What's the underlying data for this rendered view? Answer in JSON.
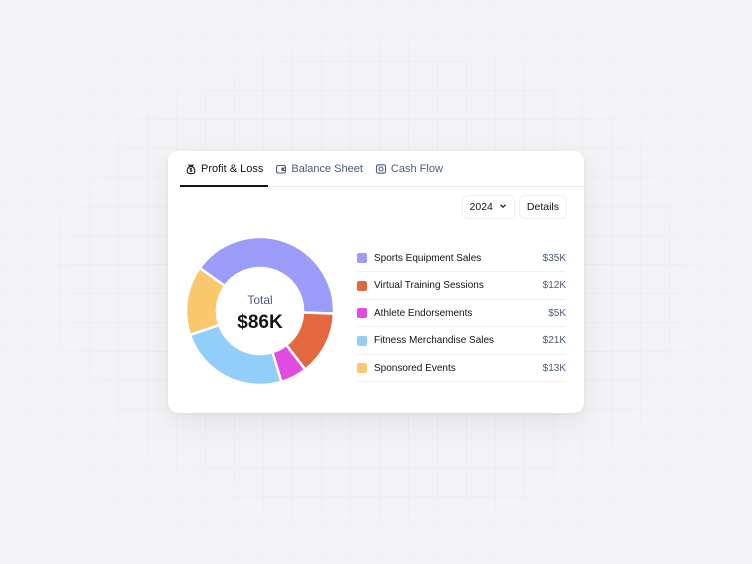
{
  "tabs": [
    {
      "label": "Profit & Loss",
      "icon": "money-bag-icon",
      "active": true
    },
    {
      "label": "Balance Sheet",
      "icon": "wallet-icon",
      "active": false
    },
    {
      "label": "Cash Flow",
      "icon": "coins-icon",
      "active": false
    }
  ],
  "year_select": {
    "value": "2024",
    "icon": "chevron-down-icon"
  },
  "details_label": "Details",
  "total": {
    "label": "Total",
    "value": "$86K"
  },
  "legend": [
    {
      "name": "Sports Equipment Sales",
      "value": "$35K",
      "color": "#9b9bf8"
    },
    {
      "name": "Virtual Training Sessions",
      "value": "$12K",
      "color": "#e3683f"
    },
    {
      "name": "Athlete Endorsements",
      "value": "$5K",
      "color": "#e24be0"
    },
    {
      "name": "Fitness Merchandise Sales",
      "value": "$21K",
      "color": "#93cdfa"
    },
    {
      "name": "Sponsored Events",
      "value": "$13K",
      "color": "#f9c86c"
    }
  ],
  "chart_data": {
    "type": "pie",
    "style": "donut",
    "categories": [
      "Sports Equipment Sales",
      "Virtual Training Sessions",
      "Athlete Endorsements",
      "Fitness Merchandise Sales",
      "Sponsored Events"
    ],
    "values": [
      35,
      12,
      5,
      21,
      13
    ],
    "unit": "$K",
    "colors": [
      "#9b9bf8",
      "#e3683f",
      "#e24be0",
      "#93cdfa",
      "#f9c86c"
    ]
  }
}
